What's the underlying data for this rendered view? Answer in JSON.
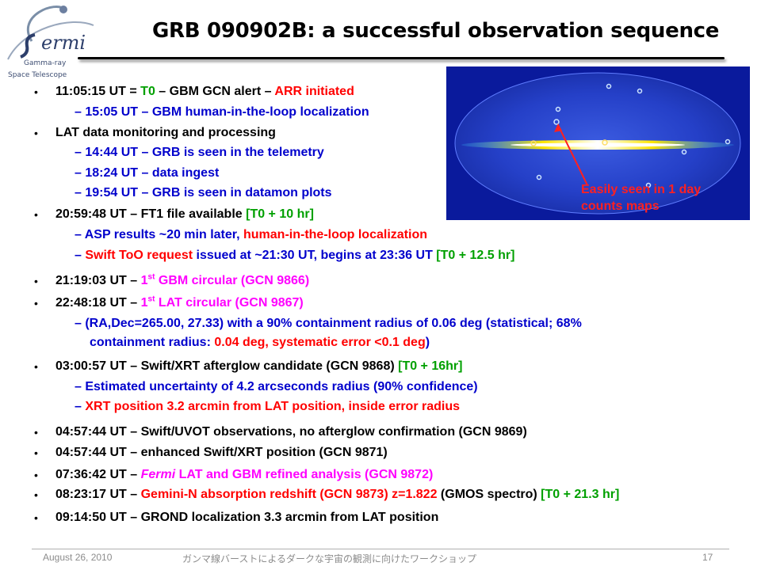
{
  "header": {
    "title": "GRB 090902B: a successful observation sequence",
    "logo": {
      "name": "Fermi",
      "line1": "Gamma-ray",
      "line2": "Space Telescope"
    }
  },
  "skymap": {
    "caption_line1": "Easily seen in 1 day",
    "caption_line2": "counts maps"
  },
  "items": [
    {
      "level": 1,
      "segments": [
        {
          "t": "11:05:15 UT = ",
          "c": "black"
        },
        {
          "t": "T0",
          "c": "green"
        },
        {
          "t": " – GBM GCN alert – ",
          "c": "black"
        },
        {
          "t": "ARR initiated",
          "c": "red"
        }
      ]
    },
    {
      "level": 2,
      "segments": [
        {
          "t": "15:05 UT – GBM human-in-the-loop localization",
          "c": "blue"
        }
      ]
    },
    {
      "level": 1,
      "segments": [
        {
          "t": "LAT data monitoring and processing",
          "c": "black"
        }
      ]
    },
    {
      "level": 2,
      "segments": [
        {
          "t": "14:44 UT – GRB is seen in the telemetry",
          "c": "blue"
        }
      ]
    },
    {
      "level": 2,
      "segments": [
        {
          "t": "18:24 UT – data ingest",
          "c": "blue"
        }
      ]
    },
    {
      "level": 2,
      "segments": [
        {
          "t": "19:54 UT – GRB is seen in datamon plots",
          "c": "blue"
        }
      ]
    },
    {
      "level": 1,
      "segments": [
        {
          "t": "20:59:48 UT – FT1 file available ",
          "c": "black"
        },
        {
          "t": "[T0 + 10 hr]",
          "c": "green"
        }
      ]
    },
    {
      "level": 2,
      "segments": [
        {
          "t": "ASP results ~20 min later, ",
          "c": "blue"
        },
        {
          "t": "human-in-the-loop localization",
          "c": "red"
        }
      ]
    },
    {
      "level": 2,
      "segments": [
        {
          "t": "Swift ToO request",
          "c": "red"
        },
        {
          "t": " issued at ~21:30 UT, begins at 23:36 UT ",
          "c": "blue"
        },
        {
          "t": "[T0 + 12.5 hr]",
          "c": "green"
        }
      ]
    },
    {
      "level": 1,
      "segments": [
        {
          "t": "21:19:03 UT – ",
          "c": "black"
        },
        {
          "t": "1",
          "c": "magenta"
        },
        {
          "t": "st",
          "c": "magenta",
          "sup": true
        },
        {
          "t": " GBM circular (GCN 9866)",
          "c": "magenta"
        }
      ]
    },
    {
      "level": 1,
      "segments": [
        {
          "t": "22:48:18 UT – ",
          "c": "black"
        },
        {
          "t": "1",
          "c": "magenta"
        },
        {
          "t": "st",
          "c": "magenta",
          "sup": true
        },
        {
          "t": " LAT circular (GCN 9867)",
          "c": "magenta"
        }
      ]
    },
    {
      "level": 2,
      "segments": [
        {
          "t": "(RA,Dec=265.00, 27.33) with a 90% containment radius of 0.06 deg (statistical; 68%",
          "c": "blue"
        }
      ]
    },
    {
      "level": 3,
      "segments": [
        {
          "t": "containment radius: ",
          "c": "blue"
        },
        {
          "t": "0.04 deg, systematic error <0.1 deg",
          "c": "red"
        },
        {
          "t": ")",
          "c": "blue"
        }
      ]
    },
    {
      "level": 1,
      "segments": [
        {
          "t": "03:00:57 UT – Swift/XRT afterglow candidate (GCN 9868) ",
          "c": "black"
        },
        {
          "t": "[T0 + 16hr]",
          "c": "green"
        }
      ]
    },
    {
      "level": 2,
      "segments": [
        {
          "t": "Estimated uncertainty of 4.2 arcseconds radius (90% confidence)",
          "c": "blue"
        }
      ]
    },
    {
      "level": 2,
      "segments": [
        {
          "t": "XRT position 3.2 arcmin from LAT position, inside error radius",
          "c": "red"
        }
      ]
    },
    {
      "level": 1,
      "segments": [
        {
          "t": "04:57:44 UT – Swift/UVOT observations, no afterglow confirmation (GCN 9869)",
          "c": "black"
        }
      ]
    },
    {
      "level": 1,
      "segments": [
        {
          "t": "04:57:44 UT – enhanced Swift/XRT position (GCN 9871)",
          "c": "black"
        }
      ]
    },
    {
      "level": 1,
      "segments": [
        {
          "t": "07:36:42 UT – ",
          "c": "black"
        },
        {
          "t": "Fermi",
          "c": "magenta",
          "it": true
        },
        {
          "t": " LAT and GBM refined analysis (GCN 9872)",
          "c": "magenta"
        }
      ]
    },
    {
      "level": 1,
      "segments": [
        {
          "t": "08:23:17 UT – ",
          "c": "black"
        },
        {
          "t": "Gemini-N absorption redshift (GCN 9873) z=1.822",
          "c": "red"
        },
        {
          "t": " (GMOS spectro) ",
          "c": "black"
        },
        {
          "t": "[T0 + 21.3 hr]",
          "c": "green"
        }
      ]
    },
    {
      "level": 1,
      "segments": [
        {
          "t": "09:14:50 UT – GROND localization 3.3 arcmin from LAT position",
          "c": "black"
        }
      ]
    }
  ],
  "footer": {
    "date": "August 26, 2010",
    "event": "ガンマ線バーストによるダークな宇宙の観測に向けたワークショップ",
    "page": "17"
  }
}
